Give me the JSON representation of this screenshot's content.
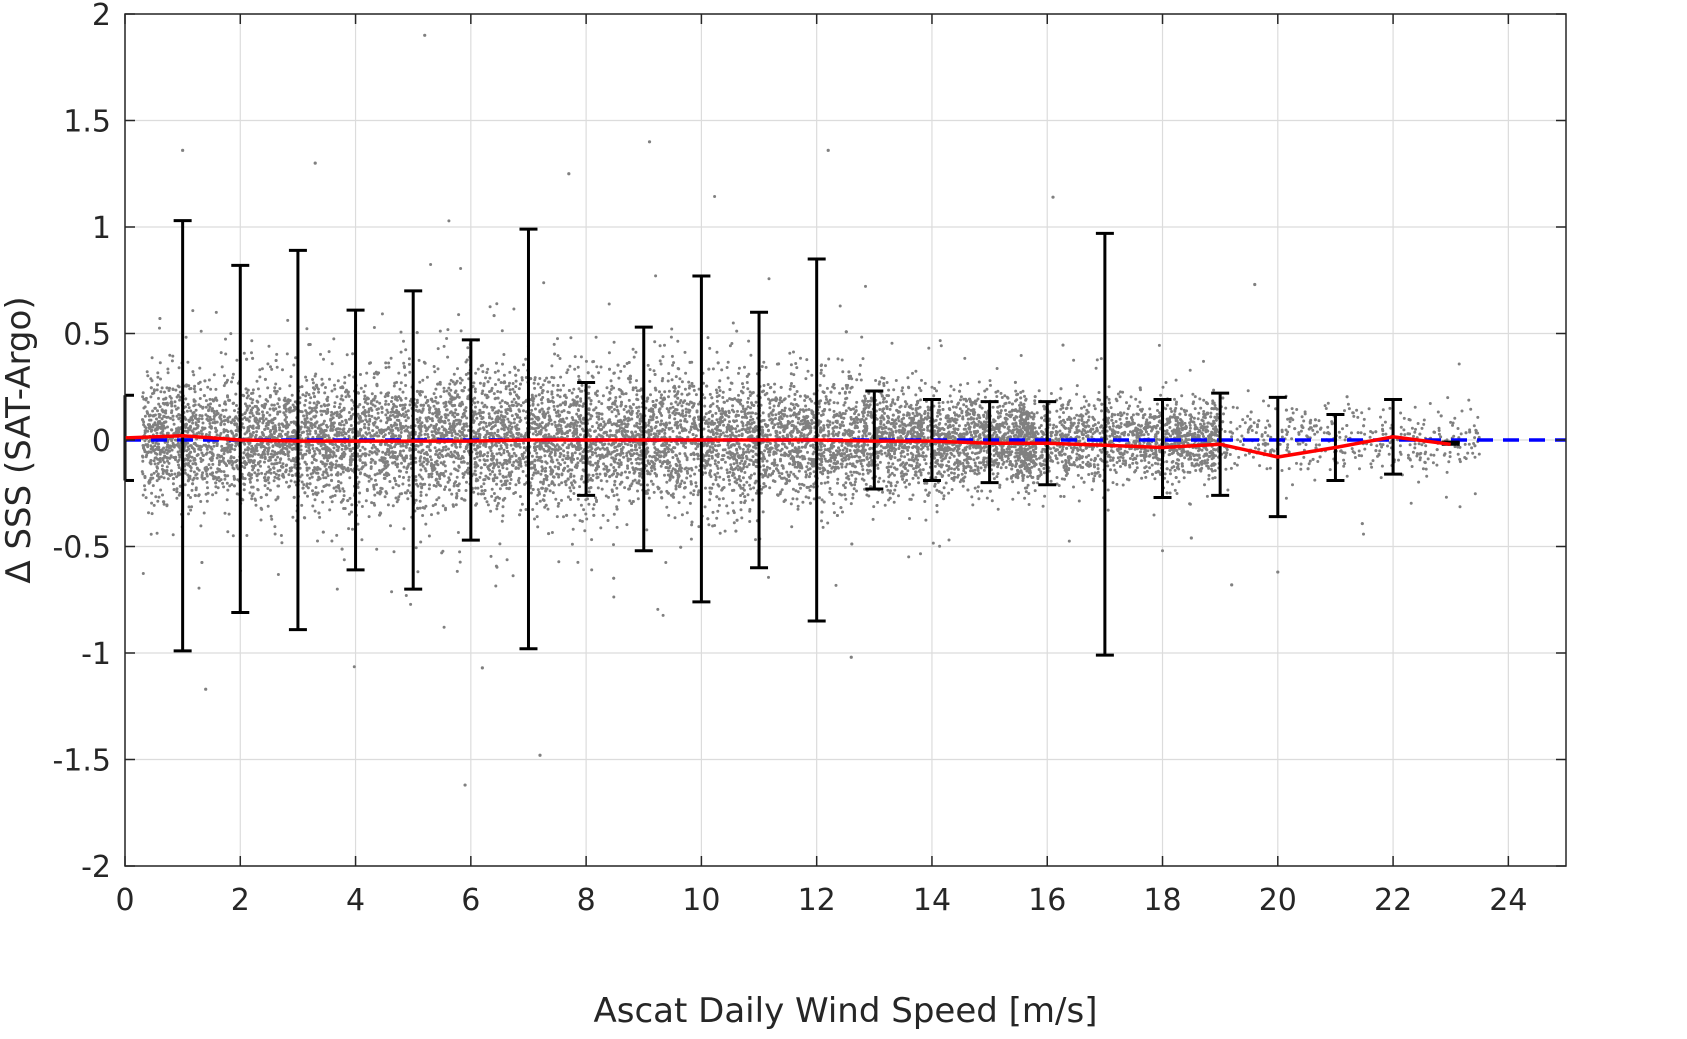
{
  "chart_data": {
    "type": "scatter",
    "title": "",
    "xlabel": "Ascat Daily Wind Speed [m/s]",
    "ylabel": "Δ SSS (SAT-Argo)",
    "xlim": [
      0,
      25
    ],
    "ylim": [
      -2,
      2
    ],
    "xticks": [
      0,
      2,
      4,
      6,
      8,
      10,
      12,
      14,
      16,
      18,
      20,
      22,
      24
    ],
    "yticks": [
      2,
      1.5,
      1,
      0.5,
      0,
      -0.5,
      -1,
      -1.5,
      -2
    ],
    "xtick_labels": [
      "0",
      "2",
      "4",
      "6",
      "8",
      "10",
      "12",
      "14",
      "16",
      "18",
      "20",
      "22",
      "24"
    ],
    "ytick_labels": [
      "2",
      "1.5",
      "1",
      "0.5",
      "0",
      "-0.5",
      "-1",
      "-1.5",
      "-2"
    ],
    "grid": true,
    "colors": {
      "scatter": "#808080",
      "mean_line": "#ff0000",
      "zero_line": "#0000ff",
      "error_bars": "#000000",
      "grid": "#dcdcdc",
      "axes": "#262626"
    },
    "zero_line": {
      "y": 0,
      "style": "dashed"
    },
    "mean_line": {
      "x": [
        0,
        1,
        2,
        3,
        4,
        5,
        6,
        7,
        8,
        9,
        10,
        11,
        12,
        13,
        14,
        15,
        16,
        17,
        18,
        19,
        20,
        21,
        22,
        23
      ],
      "y": [
        0.01,
        0.02,
        0.0,
        -0.005,
        -0.005,
        -0.005,
        -0.005,
        0.0,
        0.0,
        0.0,
        0.0,
        0.0,
        0.0,
        -0.005,
        -0.005,
        -0.015,
        -0.015,
        -0.025,
        -0.035,
        -0.02,
        -0.08,
        -0.035,
        0.015,
        -0.02
      ]
    },
    "error_bars": [
      {
        "x": 0,
        "low": -0.19,
        "high": 0.21
      },
      {
        "x": 1,
        "low": -0.99,
        "high": 1.03
      },
      {
        "x": 2,
        "low": -0.81,
        "high": 0.82
      },
      {
        "x": 3,
        "low": -0.89,
        "high": 0.89
      },
      {
        "x": 4,
        "low": -0.61,
        "high": 0.61
      },
      {
        "x": 5,
        "low": -0.7,
        "high": 0.7
      },
      {
        "x": 6,
        "low": -0.47,
        "high": 0.47
      },
      {
        "x": 7,
        "low": -0.98,
        "high": 0.99
      },
      {
        "x": 8,
        "low": -0.26,
        "high": 0.27
      },
      {
        "x": 9,
        "low": -0.52,
        "high": 0.53
      },
      {
        "x": 10,
        "low": -0.76,
        "high": 0.77
      },
      {
        "x": 11,
        "low": -0.6,
        "high": 0.6
      },
      {
        "x": 12,
        "low": -0.85,
        "high": 0.85
      },
      {
        "x": 13,
        "low": -0.23,
        "high": 0.23
      },
      {
        "x": 14,
        "low": -0.19,
        "high": 0.19
      },
      {
        "x": 15,
        "low": -0.2,
        "high": 0.18
      },
      {
        "x": 16,
        "low": -0.21,
        "high": 0.18
      },
      {
        "x": 17,
        "low": -1.01,
        "high": 0.97
      },
      {
        "x": 18,
        "low": -0.27,
        "high": 0.19
      },
      {
        "x": 19,
        "low": -0.26,
        "high": 0.22
      },
      {
        "x": 20,
        "low": -0.36,
        "high": 0.2
      },
      {
        "x": 21,
        "low": -0.19,
        "high": 0.12
      },
      {
        "x": 22,
        "low": -0.16,
        "high": 0.19
      },
      {
        "x": 23,
        "low": -0.02,
        "high": -0.01
      }
    ],
    "scatter_points": {
      "count": 12000,
      "x_range": [
        0,
        23.5
      ],
      "spread_std_by_x": [
        [
          0,
          0.13
        ],
        [
          2,
          0.14
        ],
        [
          4,
          0.15
        ],
        [
          6,
          0.155
        ],
        [
          8,
          0.15
        ],
        [
          10,
          0.145
        ],
        [
          12,
          0.135
        ],
        [
          14,
          0.11
        ],
        [
          16,
          0.095
        ],
        [
          18,
          0.085
        ],
        [
          20,
          0.08
        ],
        [
          22,
          0.075
        ],
        [
          24,
          0.07
        ]
      ],
      "outliers": [
        [
          1.0,
          1.36
        ],
        [
          5.2,
          1.9
        ],
        [
          9.1,
          1.4
        ],
        [
          12.2,
          1.36
        ],
        [
          1.4,
          -1.17
        ],
        [
          7.2,
          -1.48
        ],
        [
          5.9,
          -1.62
        ],
        [
          6.2,
          -1.07
        ],
        [
          12.6,
          -1.02
        ],
        [
          16.1,
          1.14
        ],
        [
          20.0,
          -0.62
        ],
        [
          19.6,
          0.73
        ],
        [
          19.2,
          -0.68
        ],
        [
          18.5,
          -0.46
        ],
        [
          3.3,
          1.3
        ],
        [
          7.7,
          1.25
        ]
      ]
    }
  }
}
